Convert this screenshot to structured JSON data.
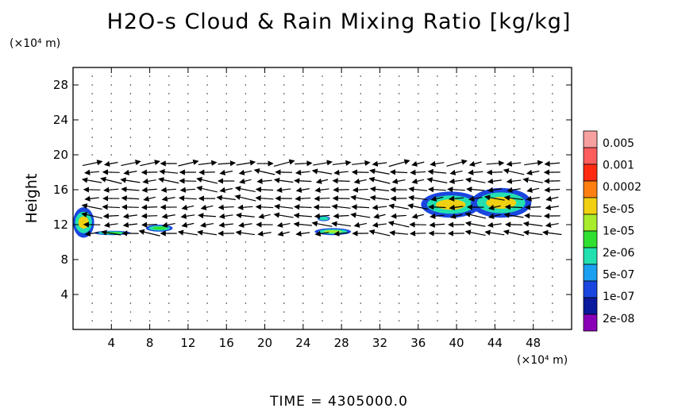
{
  "title": "H2O-s Cloud & Rain Mixing Ratio [kg/kg]",
  "y_unit": "(×10⁴ m)",
  "x_unit": "(×10⁴ m)",
  "time_label": "TIME = 4305000.0",
  "colors": {
    "wind_arrow": "#000000",
    "colorbar": [
      "#8a00b8",
      "#0a1a9c",
      "#1a46e0",
      "#1aa0f0",
      "#22e0b0",
      "#30e030",
      "#a8ec2c",
      "#f0d010",
      "#ff8010",
      "#ff2a10",
      "#ff5c5c",
      "#f7a0a0"
    ]
  },
  "chart_data": {
    "type": "heatmap",
    "title": "H2O-s Cloud & Rain Mixing Ratio [kg/kg]",
    "xlabel": "",
    "ylabel": "Height",
    "xlim": [
      0,
      52
    ],
    "ylim": [
      0,
      30
    ],
    "x_ticks": [
      4,
      8,
      12,
      16,
      20,
      24,
      28,
      32,
      36,
      40,
      44,
      48
    ],
    "y_ticks": [
      4,
      8,
      12,
      16,
      20,
      24,
      28
    ],
    "x_tick_labels": [
      "4",
      "8",
      "12",
      "16",
      "20",
      "24",
      "28",
      "32",
      "36",
      "40",
      "44",
      "48"
    ],
    "y_tick_labels": [
      "4",
      "8",
      "12",
      "16",
      "20",
      "24",
      "28"
    ],
    "grid": false,
    "colorbar": {
      "labels": [
        "0.005",
        "0.001",
        "0.0002",
        "5e-05",
        "1e-05",
        "2e-06",
        "5e-07",
        "1e-07",
        "2e-08"
      ]
    },
    "cloud_regions": [
      {
        "x_range": [
          0,
          2.2
        ],
        "y_range": [
          10.5,
          14
        ],
        "peak": "5e-05"
      },
      {
        "x_range": [
          2.2,
          6
        ],
        "y_range": [
          10.8,
          11.3
        ],
        "peak": "2e-06"
      },
      {
        "x_range": [
          7.6,
          10.4
        ],
        "y_range": [
          11.2,
          12.0
        ],
        "peak": "2e-06"
      },
      {
        "x_range": [
          25.5,
          26.8
        ],
        "y_range": [
          12.4,
          13.0
        ],
        "peak": "5e-07"
      },
      {
        "x_range": [
          25.2,
          29.0
        ],
        "y_range": [
          10.8,
          11.6
        ],
        "peak": "1e-05"
      },
      {
        "x_range": [
          36.3,
          42.5
        ],
        "y_range": [
          12.8,
          15.8
        ],
        "peak": "5e-05"
      },
      {
        "x_range": [
          41.5,
          47.8
        ],
        "y_range": [
          12.8,
          16.2
        ],
        "peak": "5e-05"
      }
    ],
    "wind_bands": [
      {
        "height": 19,
        "direction": "mixed"
      },
      {
        "height": 18,
        "direction": "west"
      },
      {
        "height": 17,
        "direction": "west"
      },
      {
        "height": 16,
        "direction": "west"
      },
      {
        "height": 15,
        "direction": "west"
      },
      {
        "height": 14,
        "direction": "west"
      },
      {
        "height": 13,
        "direction": "west"
      },
      {
        "height": 12,
        "direction": "west"
      },
      {
        "height": 11,
        "direction": "west"
      }
    ]
  }
}
